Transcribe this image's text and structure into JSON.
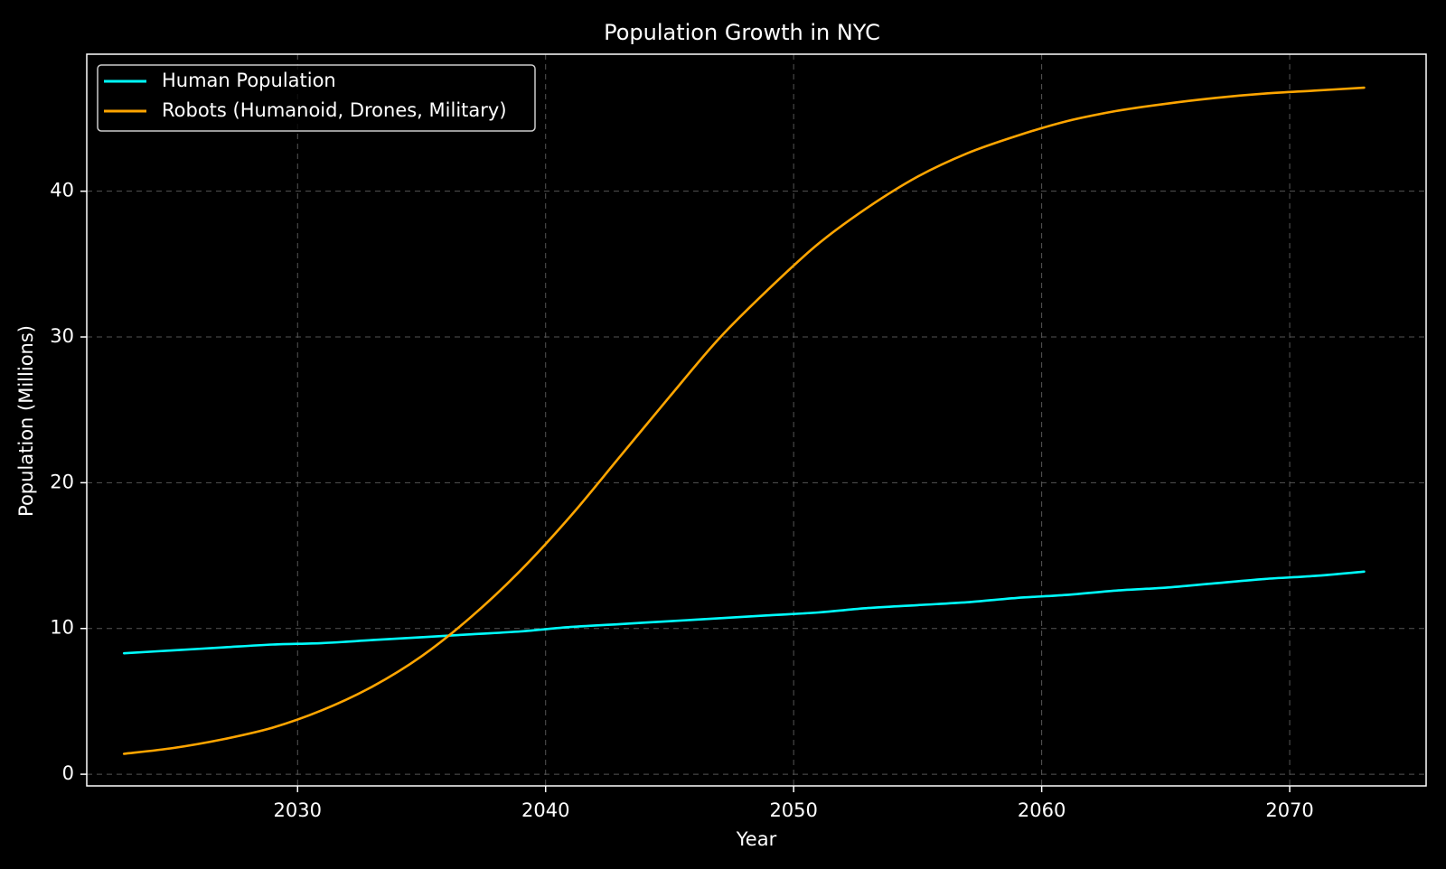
{
  "colors": {
    "background": "#000000",
    "foreground": "#ffffff",
    "grid": "#555555",
    "human": "#00ffff",
    "robots": "#ffa500"
  },
  "chart_data": {
    "type": "line",
    "title": "Population Growth in NYC",
    "xlabel": "Year",
    "ylabel": "Population (Millions)",
    "xlim": [
      2021.5,
      2075.5
    ],
    "ylim": [
      -0.8,
      49.4
    ],
    "xticks": [
      2030,
      2040,
      2050,
      2060,
      2070
    ],
    "yticks": [
      0,
      10,
      20,
      30,
      40
    ],
    "grid": true,
    "grid_style": "dashed",
    "legend_position": "upper-left",
    "x": [
      2023,
      2025,
      2027,
      2029,
      2031,
      2033,
      2035,
      2037,
      2039,
      2041,
      2043,
      2045,
      2047,
      2049,
      2051,
      2053,
      2055,
      2057,
      2059,
      2061,
      2063,
      2065,
      2067,
      2069,
      2071,
      2073
    ],
    "series": [
      {
        "name": "Human Population",
        "color": "#00ffff",
        "values": [
          8.3,
          8.5,
          8.7,
          8.9,
          9.0,
          9.2,
          9.4,
          9.6,
          9.8,
          10.1,
          10.3,
          10.5,
          10.7,
          10.9,
          11.1,
          11.4,
          11.6,
          11.8,
          12.1,
          12.3,
          12.6,
          12.8,
          13.1,
          13.4,
          13.6,
          13.9
        ],
        "format": "%.1f"
      },
      {
        "name": "Robots (Humanoid, Drones, Military)",
        "color": "#ffa500",
        "values": [
          1.4,
          1.8,
          2.4,
          3.2,
          4.4,
          6.0,
          8.1,
          10.8,
          14.0,
          17.7,
          21.8,
          25.9,
          29.9,
          33.3,
          36.4,
          38.9,
          41.0,
          42.6,
          43.8,
          44.8,
          45.5,
          46.0,
          46.4,
          46.7,
          46.9,
          47.1
        ]
      }
    ]
  }
}
